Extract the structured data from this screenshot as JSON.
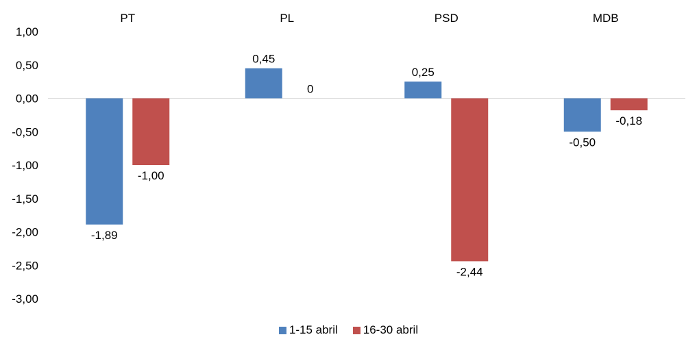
{
  "chart_data": {
    "type": "bar",
    "title": "",
    "xlabel": "",
    "ylabel": "",
    "categories": [
      "PT",
      "PL",
      "PSD",
      "MDB"
    ],
    "series": [
      {
        "name": "1-15 abril",
        "color": "#4F81BD",
        "values": [
          -1.89,
          0.45,
          0.25,
          -0.5
        ],
        "labels": [
          "-1,89",
          "0,45",
          "0,25",
          "-0,50"
        ]
      },
      {
        "name": "16-30 abril",
        "color": "#C0504D",
        "values": [
          -1.0,
          0,
          -2.44,
          -0.18
        ],
        "labels": [
          "-1,00",
          "0",
          "-2,44",
          "-0,18"
        ]
      }
    ],
    "ylim": [
      -3,
      1
    ],
    "yticks": [
      1,
      0.5,
      0,
      -0.5,
      -1,
      -1.5,
      -2,
      -2.5,
      -3
    ],
    "ytick_labels": [
      "1,00",
      "0,50",
      "0,00",
      "-0,50",
      "-1,00",
      "-1,50",
      "-2,00",
      "-2,50",
      "-3,00"
    ],
    "category_labels_position": "top",
    "grid": false,
    "legend_position": "bottom"
  }
}
